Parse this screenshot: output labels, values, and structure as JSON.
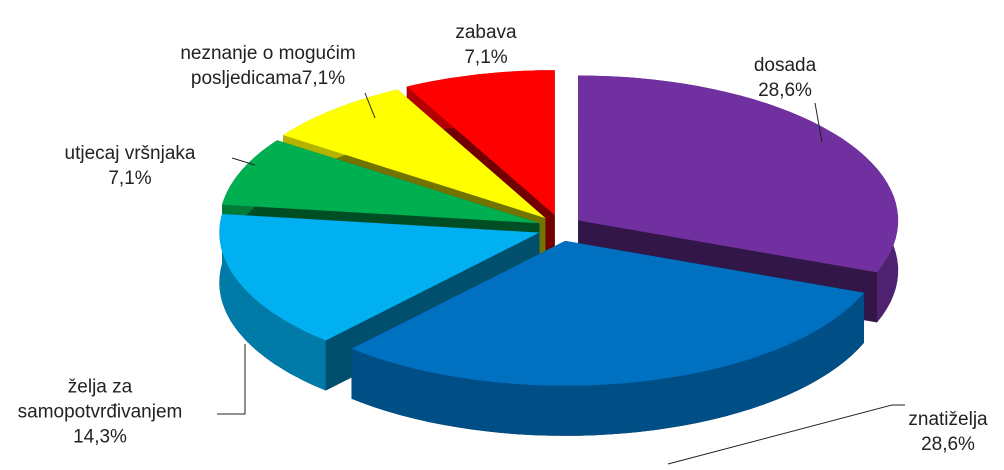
{
  "chart_data": {
    "type": "pie",
    "categories": [
      "dosada",
      "znatiželja",
      "želja za samopotvrđivanjem",
      "utjecaj vršnjaka",
      "neznanje o mogućim posljedicama",
      "zabava"
    ],
    "values": [
      28.6,
      28.6,
      14.3,
      7.1,
      7.1,
      7.1
    ],
    "value_labels": [
      "28,6%",
      "28,6%",
      "14,3%",
      "7,1%",
      "7,1%",
      "7,1%"
    ],
    "colors": [
      "#7030a0",
      "#0070c0",
      "#00b0f0",
      "#00b050",
      "#ffff00",
      "#ff0000"
    ]
  }
}
